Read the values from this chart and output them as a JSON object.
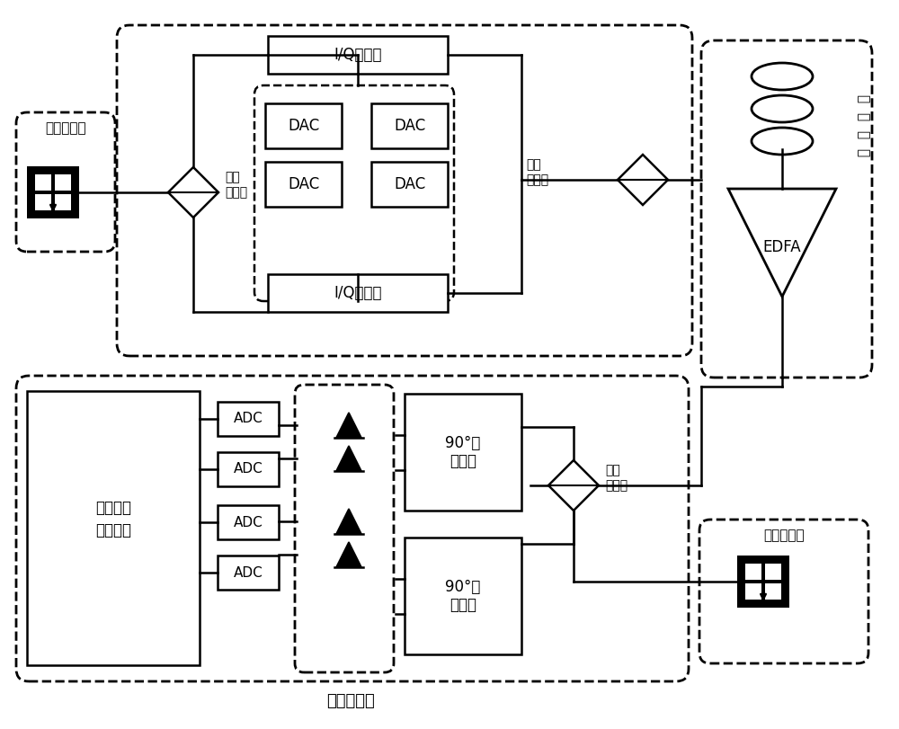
{
  "bg_color": "#ffffff",
  "figsize": [
    10.0,
    8.11
  ],
  "dpi": 100,
  "bottom_label": "平衡探测器",
  "tx_laser_label": "发射激光器",
  "rx_laser_label": "接收激光器",
  "pbs_tx_label1": "偏振",
  "pbs_tx_label2": "分束器",
  "pbc_label1": "偏振",
  "pbc_label2": "合束器",
  "pbs_rx_label1": "偏振",
  "pbs_rx_label2": "分束器",
  "fiber_label": "光纤线路",
  "dsp_label1": "数字信号",
  "dsp_label2": "处理芯片",
  "iq_top_label": "I/Q调制器",
  "iq_bot_label": "I/Q调制器",
  "hybrid_top_label1": "90°光",
  "hybrid_top_label2": "混频器",
  "hybrid_bot_label1": "90°光",
  "hybrid_bot_label2": "混频器",
  "edfa_label": "EDFA"
}
